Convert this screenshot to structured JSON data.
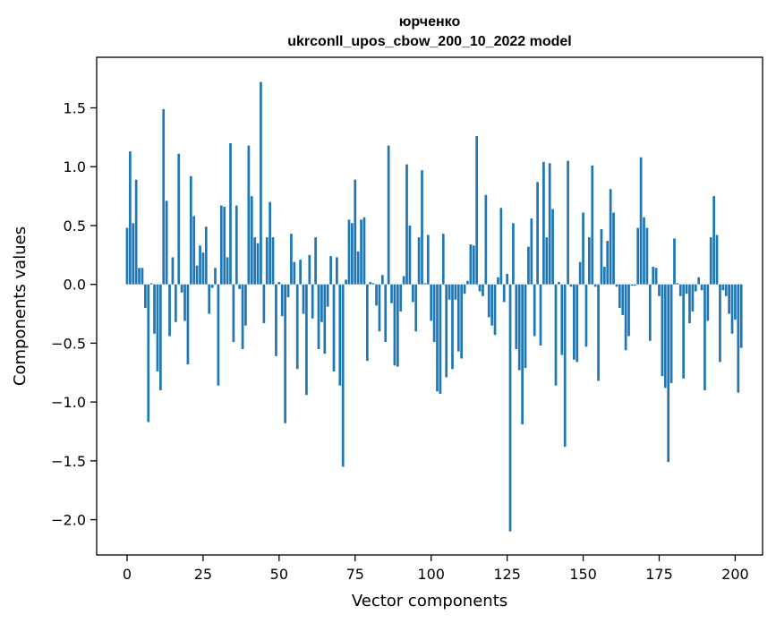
{
  "chart_data": {
    "type": "bar",
    "title": "юрченко",
    "subtitle": "ukrconll_upos_cbow_200_10_2022 model",
    "xlabel": "Vector components",
    "ylabel": "Components values",
    "xlim": [
      -10,
      209
    ],
    "ylim": [
      -2.3,
      1.93
    ],
    "xticks": [
      0,
      25,
      50,
      75,
      100,
      125,
      150,
      175,
      200
    ],
    "yticks": [
      -2.0,
      -1.5,
      -1.0,
      -0.5,
      0.0,
      0.5,
      1.0,
      1.5
    ],
    "ytick_labels": [
      "−2.0",
      "−1.5",
      "−1.0",
      "−0.5",
      "0.0",
      "0.5",
      "1.0",
      "1.5"
    ],
    "bar_color": "#1f77b4",
    "values": [
      0.48,
      1.13,
      0.52,
      0.89,
      0.14,
      0.14,
      -0.2,
      -1.17,
      0.01,
      -0.42,
      -0.74,
      -0.9,
      1.49,
      0.71,
      -0.44,
      0.23,
      -0.32,
      1.11,
      -0.07,
      -0.31,
      -0.68,
      0.92,
      0.58,
      0.16,
      0.33,
      0.27,
      0.49,
      -0.25,
      -0.03,
      0.14,
      -0.86,
      0.67,
      0.66,
      0.23,
      1.2,
      -0.49,
      0.67,
      -0.04,
      -0.55,
      -0.35,
      1.18,
      0.75,
      0.4,
      0.35,
      1.72,
      -0.33,
      0.4,
      0.7,
      0.4,
      -0.61,
      0.02,
      -0.27,
      -1.18,
      -0.11,
      0.43,
      0.19,
      -0.72,
      0.21,
      -0.25,
      -0.94,
      0.25,
      -0.29,
      0.4,
      -0.55,
      -0.32,
      -0.59,
      -0.19,
      0.24,
      -0.74,
      0.23,
      -0.86,
      -1.55,
      0.04,
      0.55,
      0.52,
      0.89,
      0.28,
      0.55,
      0.57,
      -0.65,
      0.02,
      0.01,
      -0.18,
      -0.4,
      0.08,
      -0.49,
      1.18,
      -0.16,
      -0.69,
      -0.7,
      -0.23,
      0.07,
      1.02,
      0.5,
      -0.15,
      -0.4,
      0.4,
      0.97,
      0.01,
      0.42,
      -0.31,
      -0.49,
      -0.91,
      -0.93,
      0.43,
      -0.79,
      -0.13,
      -0.72,
      -0.13,
      -0.57,
      -0.63,
      -0.08,
      0.03,
      0.34,
      0.33,
      1.26,
      -0.06,
      -0.1,
      0.76,
      -0.28,
      -0.35,
      -0.43,
      0.06,
      0.65,
      -0.15,
      0.09,
      -2.1,
      0.52,
      -0.55,
      -0.73,
      -1.19,
      -0.71,
      0.32,
      0.56,
      -0.44,
      0.87,
      -0.52,
      1.04,
      0.4,
      1.03,
      0.64,
      -0.86,
      0.02,
      -0.6,
      -1.38,
      1.05,
      -0.02,
      -0.64,
      -0.66,
      0.19,
      0.61,
      -0.53,
      0.4,
      1.01,
      -0.02,
      -0.82,
      0.47,
      0.15,
      0.37,
      0.81,
      0.61,
      -0.02,
      -0.2,
      -0.26,
      -0.56,
      -0.44,
      -0.01,
      -0.01,
      0.48,
      1.08,
      0.57,
      0.48,
      -0.48,
      0.15,
      0.14,
      -0.1,
      -0.78,
      -0.88,
      -1.51,
      -0.84,
      0.39,
      0.01,
      -0.1,
      -0.8,
      -0.08,
      -0.33,
      -0.23,
      -0.06,
      0.06,
      -0.05,
      -0.9,
      -0.31,
      0.4,
      0.75,
      0.42,
      -0.66,
      -0.05,
      -0.1,
      -0.25,
      -0.42,
      -0.3,
      -0.92,
      -0.54
    ]
  }
}
